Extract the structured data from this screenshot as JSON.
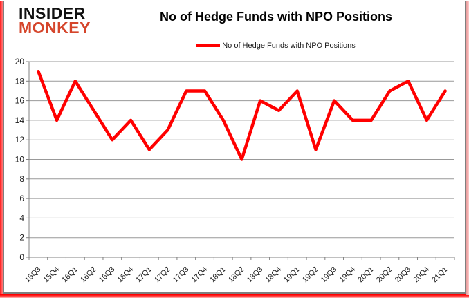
{
  "logo": {
    "line1": "INSIDER",
    "line2": "MONKEY"
  },
  "title": "No of Hedge Funds with NPO Positions",
  "legend": {
    "label": "No of Hedge Funds with NPO Positions",
    "marker_color": "#ff0000"
  },
  "colors": {
    "series": "#ff0000",
    "logo_monkey": "#d5452b",
    "grid": "#999999",
    "axis": "#808080",
    "tick_text": "#1a1a1a"
  },
  "chart_data": {
    "type": "line",
    "title": "No of Hedge Funds with NPO Positions",
    "categories": [
      "15Q3",
      "15Q4",
      "16Q1",
      "16Q2",
      "16Q3",
      "16Q4",
      "17Q1",
      "17Q2",
      "17Q3",
      "17Q4",
      "18Q1",
      "18Q2",
      "18Q3",
      "18Q4",
      "19Q1",
      "19Q2",
      "19Q3",
      "19Q4",
      "20Q1",
      "20Q2",
      "20Q3",
      "20Q4",
      "21Q1"
    ],
    "series": [
      {
        "name": "No of Hedge Funds with NPO Positions",
        "color": "#ff0000",
        "values": [
          19,
          14,
          18,
          15,
          12,
          14,
          11,
          13,
          17,
          17,
          14,
          10,
          16,
          15,
          17,
          11,
          16,
          14,
          14,
          17,
          18,
          14,
          17
        ]
      }
    ],
    "xlabel": "",
    "ylabel": "",
    "ylim": [
      0,
      20
    ],
    "yticks": [
      0,
      2,
      4,
      6,
      8,
      10,
      12,
      14,
      16,
      18,
      20
    ],
    "grid": true,
    "legend_position": "top"
  }
}
